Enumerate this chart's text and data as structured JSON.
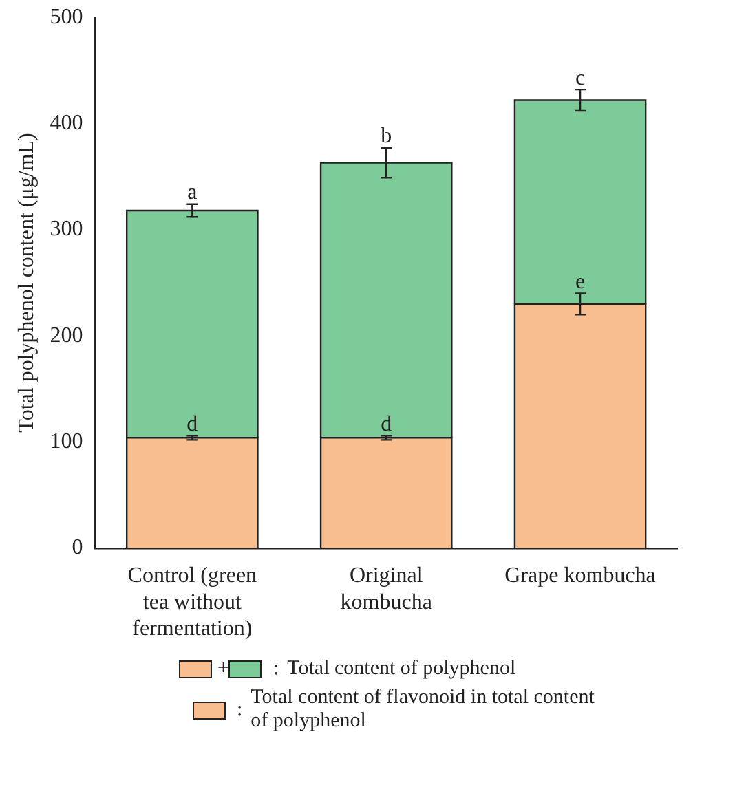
{
  "chart_data": {
    "type": "bar",
    "stacked": true,
    "ylabel": "Total polyphenol content (μg/mL)",
    "categories": [
      "Control (green tea without fermentation)",
      "Original kombucha",
      "Grape kombucha"
    ],
    "series": [
      {
        "name": "Total content of flavonoid in total content of polyphenol",
        "color": "#f9be8f",
        "values": [
          104,
          104,
          230
        ],
        "errors": [
          2,
          2,
          10
        ]
      },
      {
        "name": "Total content of polyphenol",
        "color": "#7dcb98",
        "values": [
          214,
          259,
          192
        ],
        "errors": [
          6,
          14,
          10
        ]
      }
    ],
    "ylim": [
      0,
      500
    ],
    "yticks": [
      0,
      100,
      200,
      300,
      400,
      500
    ],
    "grid": false,
    "legend": "bottom",
    "annotations": [
      {
        "text": "a",
        "x": "Control (green tea without fermentation)",
        "y": 324
      },
      {
        "text": "b",
        "x": "Original kombucha",
        "y": 377
      },
      {
        "text": "c",
        "x": "Grape kombucha",
        "y": 432
      },
      {
        "text": "d",
        "x": "Control (green tea without fermentation)",
        "y": 106
      },
      {
        "text": "d",
        "x": "Original kombucha",
        "y": 106
      },
      {
        "text": "e",
        "x": "Grape kombucha",
        "y": 240
      },
      "+",
      ":"
    ]
  }
}
